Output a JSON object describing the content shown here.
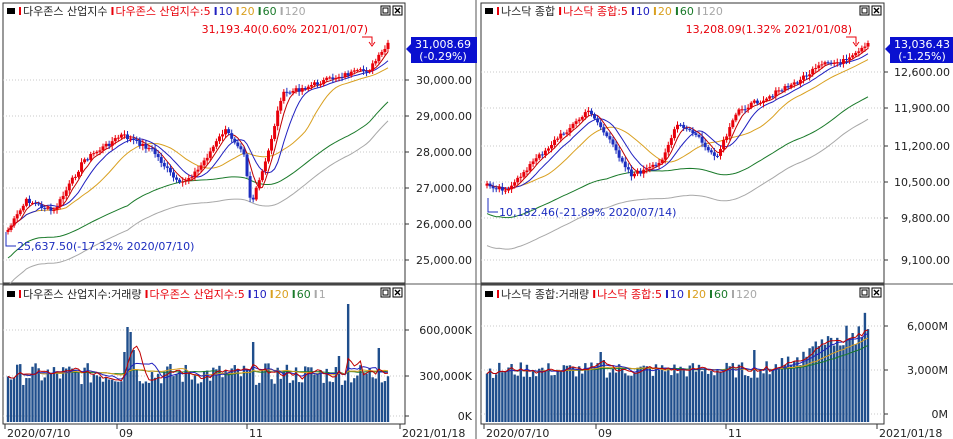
{
  "panels": {
    "dow": {
      "legend": [
        "다우존스 산업지수",
        "다우존스 산업지수:5",
        "10",
        "20",
        "60",
        "120"
      ],
      "high_label": "31,193.40(0.60% 2021/01/07)",
      "low_label": "25,637.50(-17.32% 2020/07/10)",
      "last_price": "31,008.69",
      "last_change": "(-0.29%)",
      "y_ticks": [
        "30,000.00",
        "29,000.00",
        "28,000.00",
        "27,000.00",
        "26,000.00",
        "25,000.00"
      ]
    },
    "nasdaq": {
      "legend": [
        "나스닥 종합",
        "나스닥 종합:5",
        "10",
        "20",
        "60",
        "120"
      ],
      "high_label": "13,208.09(1.32% 2021/01/08)",
      "low_label": "10,182.46(-21.89% 2020/07/14)",
      "last_price": "13,036.43",
      "last_change": "(-1.25%)",
      "y_ticks": [
        "12,600.00",
        "11,900.00",
        "11,200.00",
        "10,500.00",
        "9,800.00",
        "9,100.00"
      ]
    },
    "dow_vol": {
      "legend": [
        "다우존스 산업지수:거래량",
        "다우존스 산업지수:5",
        "10",
        "20",
        "60",
        "1"
      ],
      "y_ticks": [
        "600,000K",
        "300,000K",
        "0K"
      ],
      "x_ticks": [
        "2020/07/10",
        "09",
        "11",
        "2021/01/18"
      ]
    },
    "nasdaq_vol": {
      "legend": [
        "나스닥 종합:거래량",
        "나스닥 종합:5",
        "10",
        "20",
        "60",
        "120"
      ],
      "y_ticks": [
        "6,000M",
        "3,000M",
        "0M"
      ],
      "x_ticks": [
        "2020/07/10",
        "09",
        "11",
        "2021/01/18"
      ]
    }
  },
  "colors": {
    "up": "#e8000a",
    "down": "#1c2dbf",
    "ma5": "#c00000",
    "ma10": "#2020c0",
    "ma20": "#d9a020",
    "ma60": "#1a7a2a",
    "ma120": "#a8a8a8",
    "volume": "#1f4e8c",
    "label_box": "#0a10d0"
  }
}
